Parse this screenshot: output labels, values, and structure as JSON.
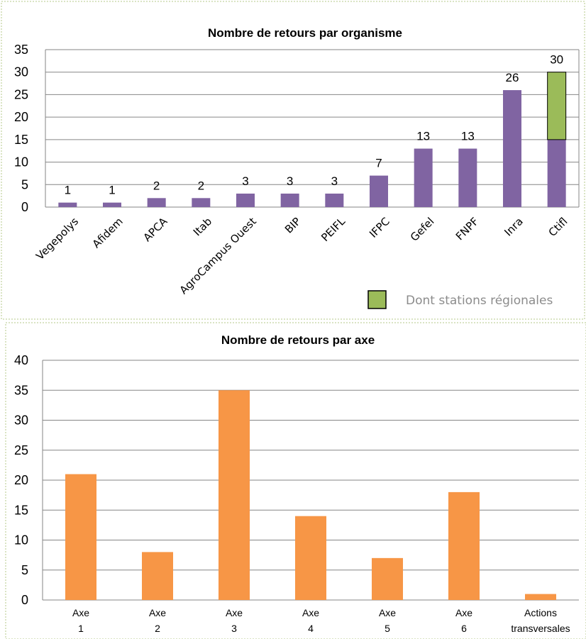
{
  "chart_data": [
    {
      "type": "bar",
      "stacked": true,
      "title": "Nombre de retours par organisme",
      "categories": [
        "Vegepolys",
        "Afidem",
        "APCA",
        "Itab",
        "AgroCampus Ouest",
        "BIP",
        "PEIFL",
        "IFPC",
        "Gefel",
        "FNPF",
        "Inra",
        "Ctifl"
      ],
      "series": [
        {
          "values": [
            1,
            1,
            2,
            2,
            3,
            3,
            3,
            7,
            13,
            13,
            26,
            15
          ],
          "color": "#8064a2"
        },
        {
          "name": "Dont stations régionales",
          "values": [
            0,
            0,
            0,
            0,
            0,
            0,
            0,
            0,
            0,
            0,
            0,
            15
          ],
          "color": "#9bbb59"
        }
      ],
      "data_labels": [
        "1",
        "1",
        "2",
        "2",
        "3",
        "3",
        "3",
        "7",
        "13",
        "13",
        "26",
        "30"
      ],
      "y_ticks": [
        "0",
        "5",
        "10",
        "15",
        "20",
        "25",
        "30",
        "35"
      ],
      "ylim": [
        0,
        35
      ],
      "grid": true,
      "legend": "bottom-right",
      "xlabel": "",
      "ylabel": ""
    },
    {
      "type": "bar",
      "title": "Nombre de retours par axe",
      "categories": [
        "Axe 1",
        "Axe 2",
        "Axe 3",
        "Axe 4",
        "Axe 5",
        "Axe 6",
        "Actions transversales"
      ],
      "values": [
        21,
        8,
        35,
        14,
        7,
        18,
        1
      ],
      "color": "#f79646",
      "y_ticks": [
        "0",
        "5",
        "10",
        "15",
        "20",
        "25",
        "30",
        "35",
        "40"
      ],
      "ylim": [
        0,
        40
      ],
      "grid": true,
      "xlabel": "",
      "ylabel": ""
    }
  ]
}
